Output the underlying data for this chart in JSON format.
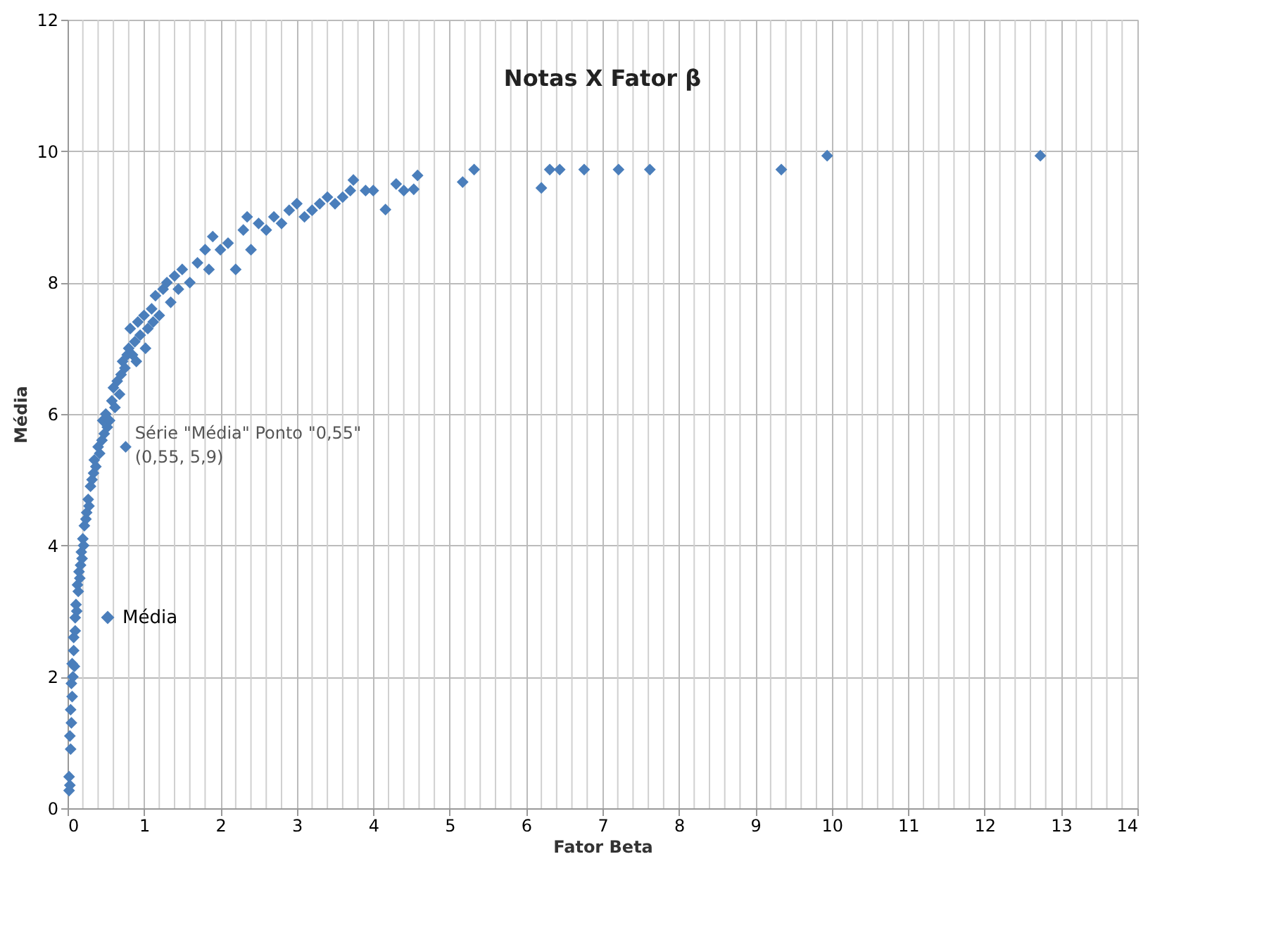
{
  "chart_data": {
    "type": "scatter",
    "title": "Notas X Fator β",
    "xlabel": "Fator Beta",
    "ylabel": "Média",
    "xlim": [
      0,
      14
    ],
    "xticks": [
      0,
      1,
      2,
      3,
      4,
      5,
      6,
      7,
      8,
      9,
      10,
      11,
      12,
      13,
      14
    ],
    "ylim": [
      0,
      12
    ],
    "yticks": [
      0,
      2,
      4,
      6,
      8,
      10,
      12
    ],
    "grid": true,
    "legend": "left",
    "marker": "diamond",
    "annotations": [
      {
        "text": "Série \"Média\" Ponto \"0,55\"\n(0,55, 5,9)",
        "x": 0.55,
        "y": 5.9
      }
    ],
    "series": [
      {
        "name": "Média",
        "color": "#4a7ebb",
        "x": [
          0.02,
          0.02,
          0.03,
          0.03,
          0.04,
          0.04,
          0.05,
          0.05,
          0.06,
          0.06,
          0.07,
          0.08,
          0.08,
          0.09,
          0.1,
          0.1,
          0.11,
          0.12,
          0.13,
          0.14,
          0.15,
          0.16,
          0.17,
          0.18,
          0.19,
          0.2,
          0.21,
          0.22,
          0.24,
          0.25,
          0.27,
          0.28,
          0.3,
          0.32,
          0.34,
          0.35,
          0.37,
          0.4,
          0.42,
          0.45,
          0.46,
          0.48,
          0.5,
          0.52,
          0.55,
          0.58,
          0.6,
          0.62,
          0.65,
          0.68,
          0.7,
          0.72,
          0.75,
          0.76,
          0.78,
          0.8,
          0.82,
          0.85,
          0.88,
          0.9,
          0.92,
          0.95,
          1.0,
          1.02,
          1.05,
          1.1,
          1.12,
          1.15,
          1.2,
          1.25,
          1.3,
          1.35,
          1.4,
          1.45,
          1.5,
          1.6,
          1.7,
          1.8,
          1.85,
          1.9,
          2.0,
          2.1,
          2.2,
          2.3,
          2.35,
          2.4,
          2.5,
          2.6,
          2.7,
          2.8,
          2.9,
          3.0,
          3.1,
          3.2,
          3.3,
          3.4,
          3.5,
          3.6,
          3.7,
          3.74,
          3.9,
          4.0,
          4.16,
          4.3,
          4.4,
          4.53,
          4.58,
          5.17,
          5.32,
          6.2,
          6.31,
          6.44,
          6.76,
          7.21,
          7.62,
          9.34,
          9.94,
          12.73
        ],
        "values": [
          0.27,
          0.48,
          0.35,
          1.1,
          0.9,
          1.5,
          1.3,
          1.9,
          1.7,
          2.2,
          2.0,
          2.4,
          2.6,
          2.16,
          2.9,
          2.7,
          3.1,
          3.0,
          3.4,
          3.3,
          3.6,
          3.5,
          3.7,
          3.9,
          3.8,
          4.1,
          4.0,
          4.3,
          4.4,
          4.5,
          4.7,
          4.6,
          4.9,
          5.0,
          5.1,
          5.3,
          5.2,
          5.5,
          5.4,
          5.6,
          5.9,
          5.7,
          6.0,
          5.8,
          5.9,
          6.2,
          6.4,
          6.1,
          6.5,
          6.3,
          6.6,
          6.8,
          6.7,
          5.5,
          6.9,
          7.0,
          7.3,
          6.9,
          7.1,
          6.8,
          7.4,
          7.2,
          7.5,
          7.0,
          7.3,
          7.6,
          7.4,
          7.8,
          7.5,
          7.9,
          8.0,
          7.7,
          8.1,
          7.9,
          8.2,
          8.0,
          8.3,
          8.5,
          8.2,
          8.7,
          8.5,
          8.6,
          8.2,
          8.8,
          9.0,
          8.5,
          8.9,
          8.8,
          9.0,
          8.9,
          9.1,
          9.2,
          9.0,
          9.1,
          9.2,
          9.3,
          9.2,
          9.3,
          9.4,
          9.56,
          9.4,
          9.4,
          9.11,
          9.5,
          9.4,
          9.42,
          9.63,
          9.53,
          9.72,
          9.44,
          9.72,
          9.72,
          9.72,
          9.72,
          9.72,
          9.72,
          9.93,
          9.93
        ]
      }
    ]
  }
}
